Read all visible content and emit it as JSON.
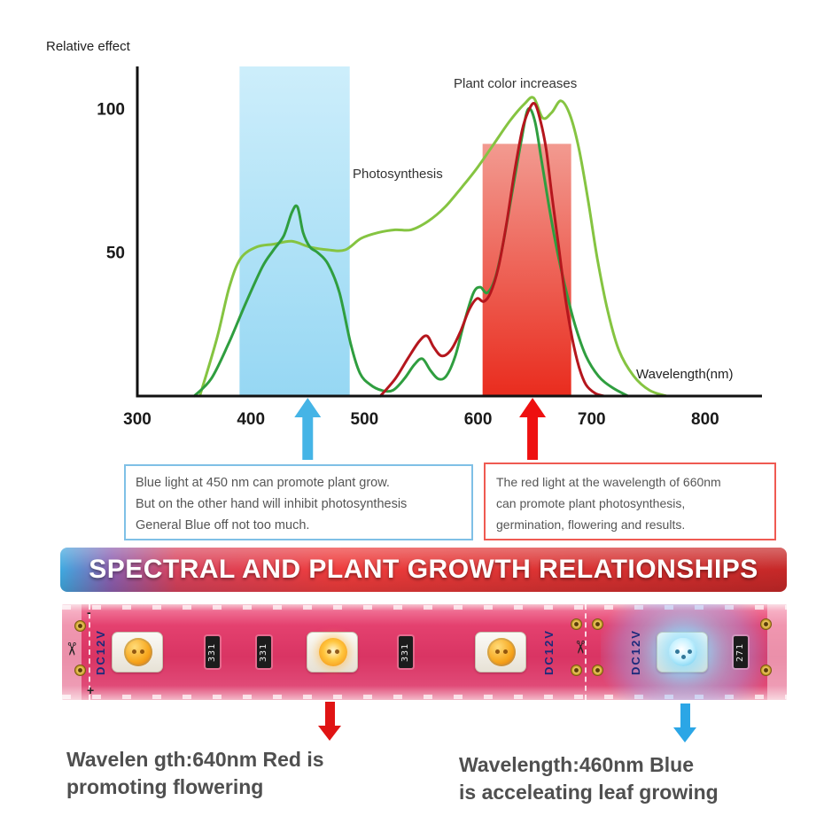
{
  "chart_data": {
    "type": "line",
    "title": "",
    "xlabel": "Wavelength(nm)",
    "ylabel": "Relative effect",
    "xlim": [
      300,
      850
    ],
    "ylim": [
      0,
      115
    ],
    "x_ticks": [
      300,
      400,
      500,
      600,
      700,
      800
    ],
    "y_ticks": [
      50,
      100
    ],
    "grid": false,
    "legend": false,
    "bands": [
      {
        "name": "blue-light-band",
        "x_from": 390,
        "x_to": 487,
        "y_from": 0,
        "y_to": 115,
        "color_top": "#cdeefb",
        "color_bottom": "#96d7f3"
      },
      {
        "name": "red-light-band",
        "x_from": 604,
        "x_to": 682,
        "y_from": 0,
        "y_to": 88,
        "color_top": "#f29a90",
        "color_bottom": "#e92c1e"
      }
    ],
    "series": [
      {
        "name": "Photosynthesis",
        "color": "#85c441",
        "width": 3,
        "points": [
          [
            355,
            0
          ],
          [
            370,
            20
          ],
          [
            381,
            38
          ],
          [
            391,
            48
          ],
          [
            405,
            52
          ],
          [
            420,
            53
          ],
          [
            436,
            54
          ],
          [
            452,
            52
          ],
          [
            468,
            51
          ],
          [
            483,
            51
          ],
          [
            497,
            55
          ],
          [
            512,
            57
          ],
          [
            527,
            58
          ],
          [
            541,
            58
          ],
          [
            556,
            61
          ],
          [
            571,
            66
          ],
          [
            586,
            73
          ],
          [
            600,
            80
          ],
          [
            614,
            88
          ],
          [
            628,
            96
          ],
          [
            641,
            102
          ],
          [
            649,
            104
          ],
          [
            657,
            97
          ],
          [
            665,
            99
          ],
          [
            673,
            103
          ],
          [
            681,
            98
          ],
          [
            689,
            86
          ],
          [
            697,
            68
          ],
          [
            705,
            48
          ],
          [
            714,
            30
          ],
          [
            724,
            16
          ],
          [
            737,
            7
          ],
          [
            751,
            2
          ],
          [
            766,
            0
          ]
        ]
      },
      {
        "name": "Blue light response",
        "color": "#2f9e3f",
        "width": 3,
        "points": [
          [
            350,
            0
          ],
          [
            365,
            6
          ],
          [
            380,
            18
          ],
          [
            395,
            32
          ],
          [
            410,
            45
          ],
          [
            420,
            51
          ],
          [
            429,
            56
          ],
          [
            436,
            64
          ],
          [
            441,
            66
          ],
          [
            446,
            57
          ],
          [
            452,
            52
          ],
          [
            459,
            50
          ],
          [
            468,
            46
          ],
          [
            478,
            36
          ],
          [
            488,
            18
          ],
          [
            496,
            8
          ],
          [
            505,
            4
          ],
          [
            515,
            2
          ],
          [
            525,
            2
          ],
          [
            535,
            6
          ],
          [
            544,
            11
          ],
          [
            551,
            13
          ],
          [
            558,
            9
          ],
          [
            565,
            6
          ],
          [
            572,
            7
          ],
          [
            580,
            14
          ],
          [
            588,
            26
          ],
          [
            596,
            36
          ],
          [
            602,
            38
          ],
          [
            608,
            36
          ],
          [
            615,
            41
          ],
          [
            622,
            53
          ],
          [
            630,
            71
          ],
          [
            638,
            89
          ],
          [
            644,
            100
          ],
          [
            650,
            96
          ],
          [
            656,
            82
          ],
          [
            663,
            65
          ],
          [
            670,
            50
          ],
          [
            678,
            36
          ],
          [
            686,
            24
          ],
          [
            695,
            14
          ],
          [
            706,
            7
          ],
          [
            718,
            3
          ],
          [
            732,
            0
          ]
        ]
      },
      {
        "name": "Plant color increases",
        "color": "#b5161d",
        "width": 3,
        "points": [
          [
            514,
            0
          ],
          [
            527,
            6
          ],
          [
            538,
            13
          ],
          [
            548,
            19
          ],
          [
            555,
            21
          ],
          [
            561,
            17
          ],
          [
            568,
            14
          ],
          [
            576,
            16
          ],
          [
            584,
            22
          ],
          [
            592,
            30
          ],
          [
            599,
            34
          ],
          [
            605,
            33
          ],
          [
            611,
            36
          ],
          [
            618,
            45
          ],
          [
            625,
            60
          ],
          [
            632,
            78
          ],
          [
            639,
            93
          ],
          [
            645,
            100
          ],
          [
            650,
            102
          ],
          [
            655,
            96
          ],
          [
            660,
            86
          ],
          [
            665,
            70
          ],
          [
            671,
            52
          ],
          [
            677,
            34
          ],
          [
            683,
            20
          ],
          [
            689,
            10
          ],
          [
            695,
            4
          ],
          [
            703,
            1
          ],
          [
            711,
            0
          ]
        ]
      }
    ],
    "annotations": [
      {
        "text": "Photosynthesis",
        "x": 490,
        "y": 77
      },
      {
        "text": "Plant color increases",
        "x": 578,
        "y": 108
      }
    ],
    "arrows": [
      {
        "label": "blue light 450 nm",
        "x": 450,
        "color": "#45b4e6"
      },
      {
        "label": "red light 660 nm",
        "x": 648,
        "color": "#ee1010"
      }
    ]
  },
  "callouts": {
    "blue": {
      "line1": "Blue light at 450 nm can promote plant grow.",
      "line2": "But on the other hand will inhibit photosynthesis",
      "line3": "General Blue off not too much.",
      "border": "#7fc0e6"
    },
    "red": {
      "line1": "The red light at the wavelength of 660nm",
      "line2": "can promote plant photosynthesis,",
      "line3": "germination, flowering and results.",
      "border": "#ef5a52"
    }
  },
  "banner": {
    "text": "SPECTRAL AND PLANT GROWTH RELATIONSHIPS",
    "color_left": "#3fa9e0",
    "color_right": "#c62828"
  },
  "strip": {
    "dc_label": "DC12V",
    "resistors": [
      "331",
      "331",
      "331",
      "271"
    ],
    "polarity": {
      "plus": "+",
      "minus": "-"
    },
    "icons": {
      "scissors": "✂"
    }
  },
  "captions": {
    "red": {
      "line1": "Wavelen gth:640nm Red is",
      "line2": "promoting flowering",
      "arrow_color": "#e01414"
    },
    "blue": {
      "line1": "Wavelength:460nm Blue",
      "line2": "is acceleating leaf growing",
      "arrow_color": "#2ba6e6"
    }
  }
}
